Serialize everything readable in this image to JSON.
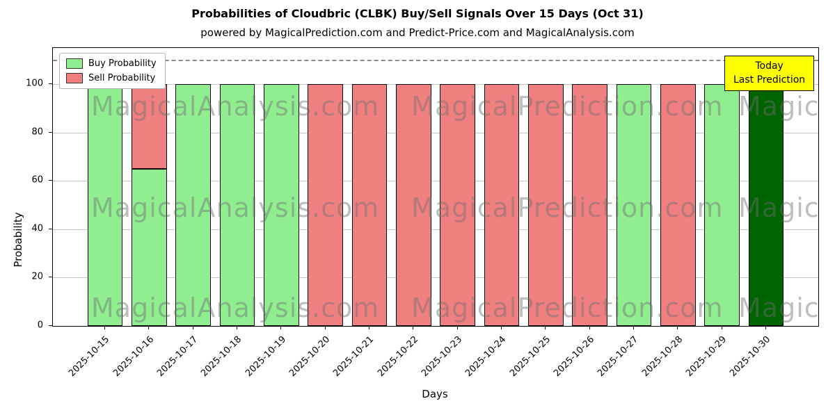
{
  "title": "Probabilities of Cloudbric (CLBK) Buy/Sell Signals Over 15 Days (Oct 31)",
  "subtitle": "powered by MagicalPrediction.com and Predict-Price.com and MagicalAnalysis.com",
  "legend": [
    {
      "label": "Buy Probability",
      "color": "#90ee90"
    },
    {
      "label": "Sell Probability",
      "color": "#f08080"
    }
  ],
  "annotation": {
    "line1": "Today",
    "line2": "Last Prediction",
    "bg": "#ffff00"
  },
  "watermark": {
    "texts": [
      "MagicalAnalysis.com",
      "MagicalPrediction.com"
    ]
  },
  "chart_data": {
    "type": "bar",
    "stacked": true,
    "title": "Probabilities of Cloudbric (CLBK) Buy/Sell Signals Over 15 Days (Oct 31)",
    "xlabel": "Days",
    "ylabel": "Probability",
    "ylim": [
      0,
      115
    ],
    "yticks": [
      0,
      20,
      40,
      60,
      80,
      100
    ],
    "dashed_line_y": 110,
    "grid": true,
    "legend_position": "upper-left",
    "categories": [
      "2025-10-15",
      "2025-10-16",
      "2025-10-17",
      "2025-10-18",
      "2025-10-19",
      "2025-10-20",
      "2025-10-21",
      "2025-10-22",
      "2025-10-23",
      "2025-10-24",
      "2025-10-25",
      "2025-10-26",
      "2025-10-27",
      "2025-10-28",
      "2025-10-29",
      "2025-10-30"
    ],
    "series": [
      {
        "name": "Buy Probability",
        "color": "#90ee90",
        "values": [
          100,
          65,
          100,
          100,
          100,
          0,
          0,
          0,
          0,
          0,
          0,
          0,
          100,
          0,
          100,
          100
        ]
      },
      {
        "name": "Sell Probability",
        "color": "#f08080",
        "values": [
          0,
          35,
          0,
          0,
          0,
          100,
          100,
          100,
          100,
          100,
          100,
          100,
          0,
          100,
          0,
          0
        ]
      }
    ],
    "today_index": 15,
    "today_color": "#006400"
  }
}
